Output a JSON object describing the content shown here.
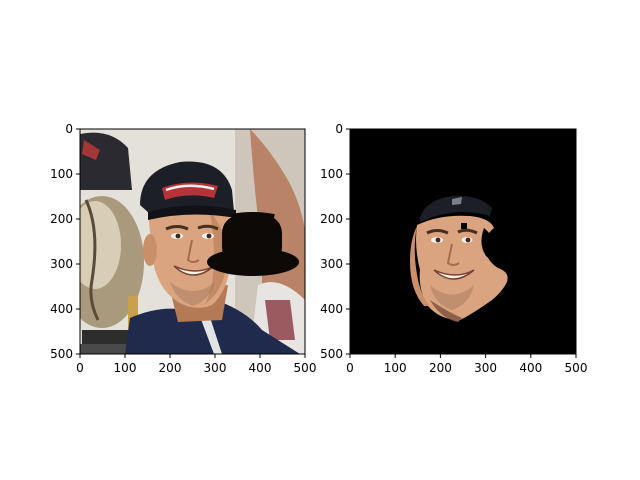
{
  "chart_data": [
    {
      "type": "image",
      "description_visible": "photo with black hat overlay",
      "xlim": [
        0,
        500
      ],
      "ylim": [
        500,
        0
      ],
      "x_ticks": [
        "0",
        "100",
        "200",
        "300",
        "400",
        "500"
      ],
      "y_ticks": [
        "0",
        "100",
        "200",
        "300",
        "400",
        "500"
      ],
      "grid": false,
      "hat_overlay": {
        "center": [
          360,
          265
        ],
        "color": "#0d0906"
      }
    },
    {
      "type": "image",
      "description_visible": "segmented face on black background",
      "xlim": [
        0,
        500
      ],
      "ylim": [
        500,
        0
      ],
      "x_ticks": [
        "0",
        "100",
        "200",
        "300",
        "400",
        "500"
      ],
      "y_ticks": [
        "0",
        "100",
        "200",
        "300",
        "400",
        "500"
      ],
      "grid": false,
      "background_color": "#000000"
    }
  ],
  "colors": {
    "skin": "#d9a47f",
    "skin_shadow": "#b47a55",
    "cap": "#1d1f26",
    "shirt": "#1f2a4c",
    "trophy": "#b8aa8c",
    "bg_light": "#e9e6e1"
  }
}
